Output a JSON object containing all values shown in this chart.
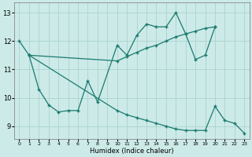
{
  "xlabel": "Humidex (Indice chaleur)",
  "bg_color": "#cceae8",
  "grid_color": "#aad4d0",
  "line_color": "#1a7a6e",
  "xlim": [
    -0.5,
    23.5
  ],
  "ylim": [
    8.55,
    13.35
  ],
  "yticks": [
    9,
    10,
    11,
    12,
    13
  ],
  "xticks": [
    0,
    1,
    2,
    3,
    4,
    5,
    6,
    7,
    8,
    9,
    10,
    11,
    12,
    13,
    14,
    15,
    16,
    17,
    18,
    19,
    20,
    21,
    22,
    23
  ],
  "lineA_x": [
    0,
    1,
    2,
    3,
    4,
    5,
    6,
    7,
    8,
    10,
    11,
    12,
    13,
    14,
    15,
    16,
    17,
    18,
    19,
    20
  ],
  "lineA_y": [
    12.0,
    11.5,
    10.3,
    9.75,
    9.5,
    9.55,
    9.55,
    10.6,
    9.85,
    11.85,
    11.5,
    12.2,
    12.6,
    12.5,
    12.5,
    13.0,
    12.25,
    11.35,
    11.5,
    12.5
  ],
  "lineB_x": [
    1,
    10,
    11,
    12,
    13,
    14,
    15,
    16,
    17,
    18,
    19,
    20
  ],
  "lineB_y": [
    11.5,
    11.3,
    11.45,
    11.6,
    11.75,
    11.85,
    12.0,
    12.15,
    12.25,
    12.35,
    12.45,
    12.5
  ],
  "lineC_x": [
    1,
    10,
    11,
    12,
    13,
    14,
    15,
    16,
    17,
    18,
    19,
    20,
    21,
    22,
    23
  ],
  "lineC_y": [
    11.5,
    9.55,
    9.4,
    9.3,
    9.2,
    9.1,
    9.0,
    8.9,
    8.85,
    8.85,
    8.85,
    9.7,
    9.2,
    9.1,
    8.75
  ]
}
